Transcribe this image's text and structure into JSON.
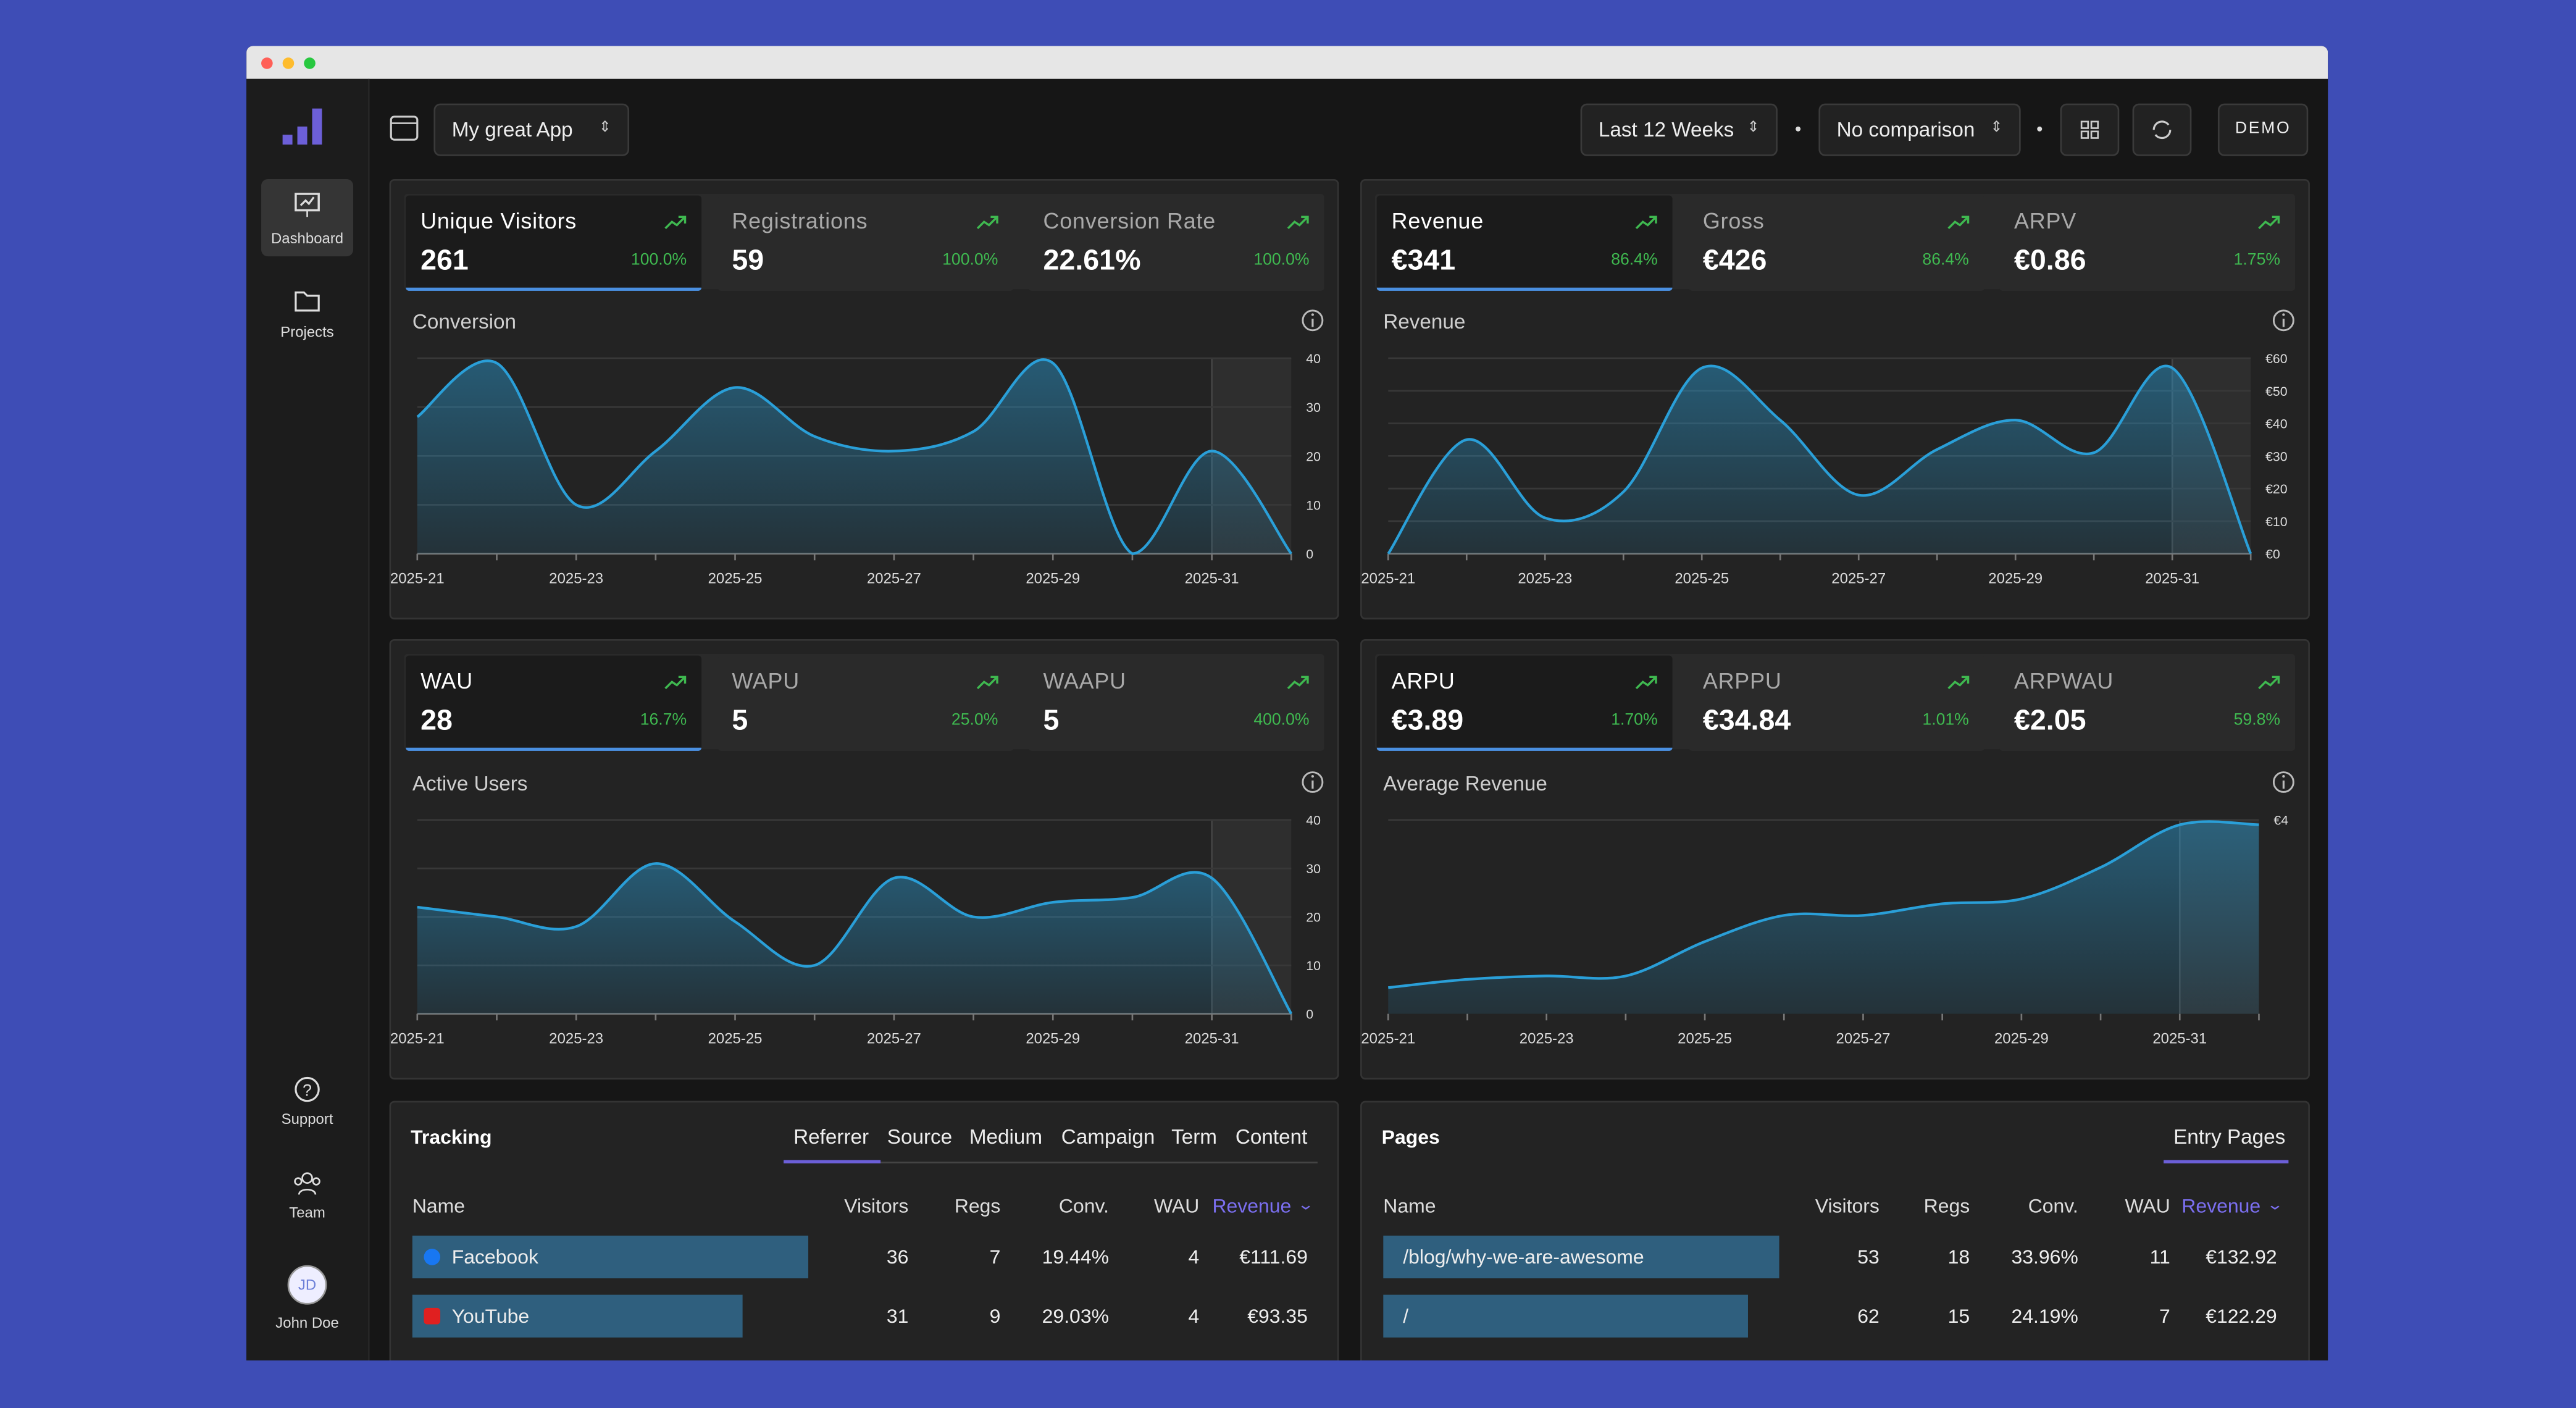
{
  "sidebar": {
    "items": [
      "Dashboard",
      "Projects"
    ],
    "bottom": [
      "Support",
      "Team"
    ],
    "user": {
      "initials": "JD",
      "name": "John Doe"
    }
  },
  "header": {
    "app": "My great App",
    "range": "Last 12 Weeks",
    "comparison": "No comparison",
    "mode": "DEMO"
  },
  "panels": [
    {
      "metrics": [
        {
          "label": "Unique Visitors",
          "value": "261",
          "change": "100.0%"
        },
        {
          "label": "Registrations",
          "value": "59",
          "change": "100.0%"
        },
        {
          "label": "Conversion Rate",
          "value": "22.61%",
          "change": "100.0%"
        }
      ]
    },
    {
      "metrics": [
        {
          "label": "Revenue",
          "value": "€341",
          "change": "86.4%"
        },
        {
          "label": "Gross",
          "value": "€426",
          "change": "86.4%"
        },
        {
          "label": "ARPV",
          "value": "€0.86",
          "change": "1.75%"
        }
      ]
    },
    {
      "metrics": [
        {
          "label": "WAU",
          "value": "28",
          "change": "16.7%"
        },
        {
          "label": "WAPU",
          "value": "5",
          "change": "25.0%"
        },
        {
          "label": "WAAPU",
          "value": "5",
          "change": "400.0%"
        }
      ]
    },
    {
      "metrics": [
        {
          "label": "ARPU",
          "value": "€3.89",
          "change": "1.70%"
        },
        {
          "label": "ARPPU",
          "value": "€34.84",
          "change": "1.01%"
        },
        {
          "label": "ARPWAU",
          "value": "€2.05",
          "change": "59.8%"
        }
      ]
    }
  ],
  "chart_data": [
    {
      "type": "area",
      "title": "Conversion",
      "categories": [
        "2025-21",
        null,
        "2025-23",
        null,
        "2025-25",
        null,
        "2025-27",
        null,
        "2025-29",
        null,
        "2025-31",
        null
      ],
      "values": [
        28,
        39,
        10,
        21,
        34,
        24,
        21,
        25,
        39,
        0,
        21,
        0
      ],
      "ylim": [
        0,
        40
      ],
      "yticks": [
        0,
        10,
        20,
        30,
        40
      ],
      "color": "#2a9fd8"
    },
    {
      "type": "area",
      "title": "Revenue",
      "categories": [
        "2025-21",
        null,
        "2025-23",
        null,
        "2025-25",
        null,
        "2025-27",
        null,
        "2025-29",
        null,
        "2025-31",
        null
      ],
      "values": [
        0,
        35,
        11,
        19,
        57,
        41,
        18,
        32,
        41,
        31,
        57,
        0
      ],
      "ylim": [
        0,
        60
      ],
      "yticks": [
        {
          "value": 0,
          "label": "€0"
        },
        {
          "value": 10,
          "label": "€10"
        },
        {
          "value": 20,
          "label": "€20"
        },
        {
          "value": 30,
          "label": "€30"
        },
        {
          "value": 40,
          "label": "€40"
        },
        {
          "value": 50,
          "label": "€50"
        },
        {
          "value": 60,
          "label": "€60"
        }
      ],
      "color": "#2a9fd8"
    },
    {
      "type": "area",
      "title": "Active Users",
      "categories": [
        "2025-21",
        null,
        "2025-23",
        null,
        "2025-25",
        null,
        "2025-27",
        null,
        "2025-29",
        null,
        "2025-31",
        null
      ],
      "values": [
        22,
        20,
        18,
        31,
        19,
        10,
        28,
        20,
        23,
        24,
        28,
        0
      ],
      "ylim": [
        0,
        40
      ],
      "yticks": [
        0,
        10,
        20,
        30,
        40
      ],
      "color": "#2a9fd8"
    },
    {
      "type": "area",
      "title": "Average Revenue",
      "categories": [
        "2025-21",
        null,
        "2025-23",
        null,
        "2025-25",
        null,
        "2025-27",
        null,
        "2025-29",
        null,
        "2025-31",
        null
      ],
      "values": [
        0.54,
        0.71,
        0.78,
        0.78,
        1.49,
        2.03,
        2.03,
        2.27,
        2.37,
        3.02,
        3.9,
        3.9
      ],
      "ylim": [
        0,
        4
      ],
      "yticks": [
        {
          "value": 4,
          "label": "€4"
        }
      ],
      "color": "#2a9fd8"
    }
  ],
  "tables": [
    {
      "title": "Tracking",
      "tabs": [
        "Referrer",
        "Source",
        "Medium",
        "Campaign",
        "Term",
        "Content"
      ],
      "columns": [
        "Name",
        "Visitors",
        "Regs",
        "Conv.",
        "WAU",
        "Revenue"
      ],
      "rows": [
        [
          "Facebook",
          36,
          7,
          "19.44%",
          4,
          "€111.69"
        ],
        [
          "YouTube",
          31,
          9,
          "29.03%",
          4,
          "€93.35"
        ]
      ]
    },
    {
      "title": "Pages",
      "tabs": [
        "Entry Pages"
      ],
      "columns": [
        "Name",
        "Visitors",
        "Regs",
        "Conv.",
        "WAU",
        "Revenue"
      ],
      "rows": [
        [
          "/blog/why-we-are-awesome",
          53,
          18,
          "33.96%",
          11,
          "€132.92"
        ],
        [
          "/",
          62,
          15,
          "24.19%",
          7,
          "€122.29"
        ]
      ]
    }
  ]
}
